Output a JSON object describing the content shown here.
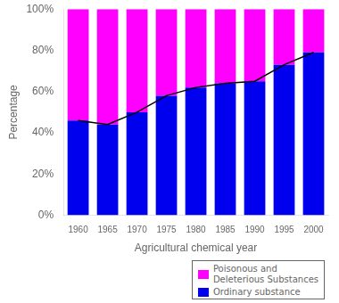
{
  "chart_data": {
    "type": "bar",
    "categories": [
      "1960",
      "1965",
      "1970",
      "1975",
      "1980",
      "1985",
      "1990",
      "1995",
      "2000"
    ],
    "xlabel": "Agricultural chemical year",
    "ylabel": "Percentage",
    "stacked": true,
    "grid": false,
    "legend": "lower right",
    "ylim": [
      0,
      100
    ],
    "yticks": [
      {
        "value": 0,
        "label": "0%"
      },
      {
        "value": 20,
        "label": "20%"
      },
      {
        "value": 40,
        "label": "40%"
      },
      {
        "value": 60,
        "label": "60%"
      },
      {
        "value": 80,
        "label": "80%"
      },
      {
        "value": 100,
        "label": "100%"
      }
    ],
    "series": [
      {
        "name": "Ordinary substance",
        "color": "#0000EE",
        "values": [
          46,
          44,
          50,
          58,
          62,
          64,
          65,
          73,
          79
        ]
      },
      {
        "name": "Poisonous and\nDeleterious Substances",
        "color": "#FF00FF",
        "values": [
          54,
          56,
          50,
          42,
          38,
          36,
          35,
          27,
          21
        ]
      },
      {
        "type": "line",
        "color": "#000000",
        "values": [
          46,
          44,
          50,
          58,
          62,
          64,
          65,
          73,
          79
        ]
      }
    ]
  }
}
